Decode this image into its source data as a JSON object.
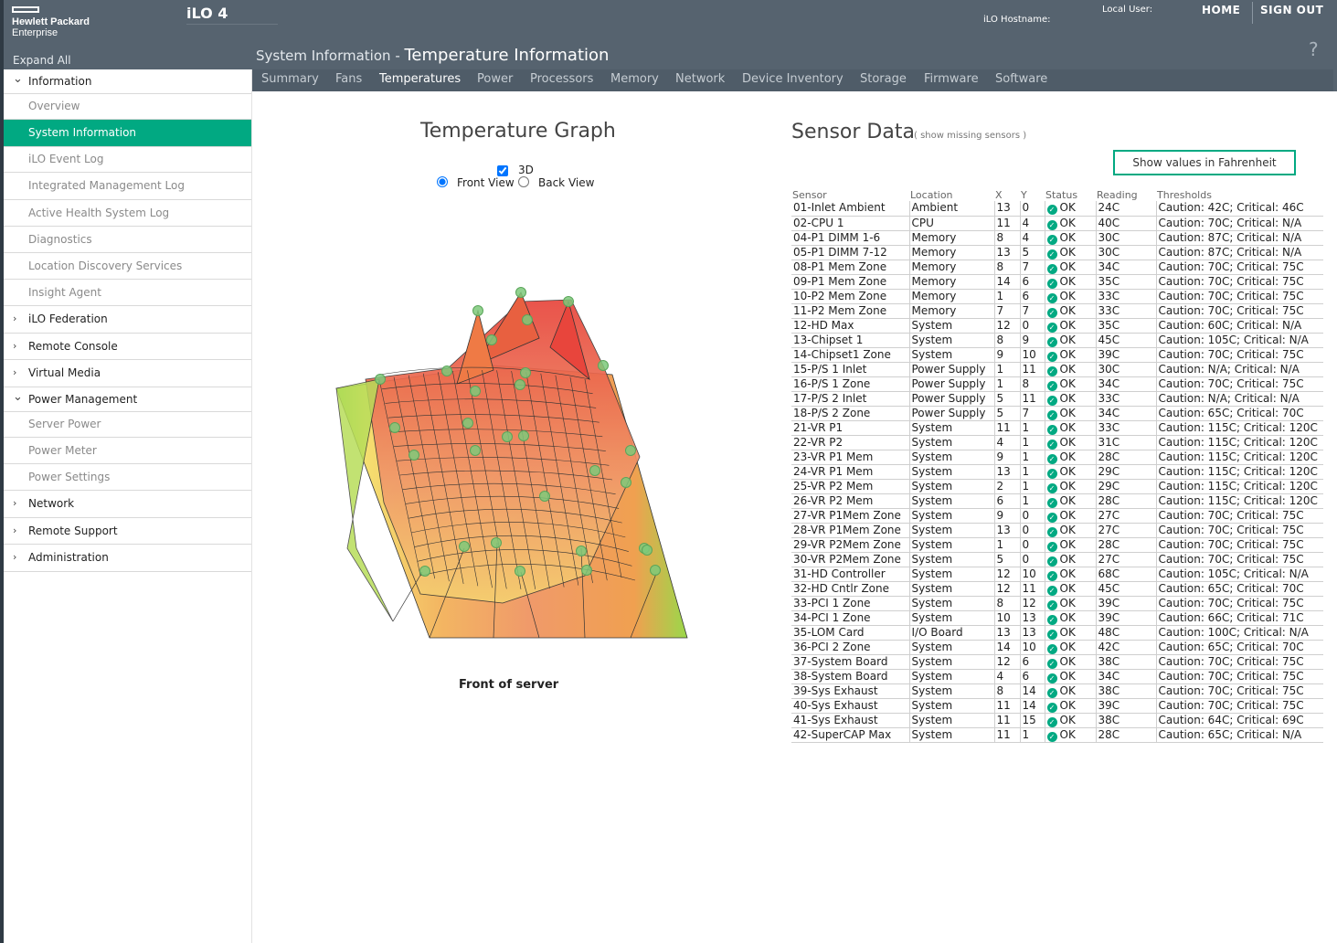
{
  "header": {
    "logo_line1": "Hewlett Packard",
    "logo_line2": "Enterprise",
    "product": "iLO 4",
    "hostname_label": "iLO Hostname:",
    "local_user_label": "Local User:",
    "home": "HOME",
    "sign_out": "SIGN OUT",
    "expand_all": "Expand All",
    "breadcrumb": "System Information",
    "separator": " - ",
    "page_title": "Temperature Information",
    "help": "?"
  },
  "tabs": [
    "Summary",
    "Fans",
    "Temperatures",
    "Power",
    "Processors",
    "Memory",
    "Network",
    "Device Inventory",
    "Storage",
    "Firmware",
    "Software"
  ],
  "active_tab": "Temperatures",
  "sidebar": [
    {
      "label": "Information",
      "type": "section",
      "expanded": true
    },
    {
      "label": "Overview",
      "type": "sub"
    },
    {
      "label": "System Information",
      "type": "sub",
      "active": true
    },
    {
      "label": "iLO Event Log",
      "type": "sub"
    },
    {
      "label": "Integrated Management Log",
      "type": "sub"
    },
    {
      "label": "Active Health System Log",
      "type": "sub"
    },
    {
      "label": "Diagnostics",
      "type": "sub"
    },
    {
      "label": "Location Discovery Services",
      "type": "sub"
    },
    {
      "label": "Insight Agent",
      "type": "sub"
    },
    {
      "label": "iLO Federation",
      "type": "section",
      "expanded": false
    },
    {
      "label": "Remote Console",
      "type": "section",
      "expanded": false
    },
    {
      "label": "Virtual Media",
      "type": "section",
      "expanded": false
    },
    {
      "label": "Power Management",
      "type": "section",
      "expanded": true
    },
    {
      "label": "Server Power",
      "type": "sub"
    },
    {
      "label": "Power Meter",
      "type": "sub"
    },
    {
      "label": "Power Settings",
      "type": "sub"
    },
    {
      "label": "Network",
      "type": "section",
      "expanded": false
    },
    {
      "label": "Remote Support",
      "type": "section",
      "expanded": false
    },
    {
      "label": "Administration",
      "type": "section",
      "expanded": false
    }
  ],
  "graph": {
    "title": "Temperature Graph",
    "checkbox_3d_label": "3D",
    "checkbox_3d_checked": true,
    "radio_front_label": "Front View",
    "radio_back_label": "Back View",
    "selected_view": "Front View",
    "caption": "Front of server"
  },
  "sensor_panel": {
    "title": "Sensor Data",
    "show_missing": "( show missing sensors )",
    "fahrenheit_button": "Show values in Fahrenheit",
    "columns": [
      "Sensor",
      "Location",
      "X",
      "Y",
      "Status",
      "Reading",
      "Thresholds"
    ],
    "rows": [
      [
        "01-Inlet Ambient",
        "Ambient",
        "13",
        "0",
        "OK",
        "24C",
        "Caution: 42C; Critical: 46C"
      ],
      [
        "02-CPU 1",
        "CPU",
        "11",
        "4",
        "OK",
        "40C",
        "Caution: 70C; Critical: N/A"
      ],
      [
        "04-P1 DIMM 1-6",
        "Memory",
        "8",
        "4",
        "OK",
        "30C",
        "Caution: 87C; Critical: N/A"
      ],
      [
        "05-P1 DIMM 7-12",
        "Memory",
        "13",
        "5",
        "OK",
        "30C",
        "Caution: 87C; Critical: N/A"
      ],
      [
        "08-P1 Mem Zone",
        "Memory",
        "8",
        "7",
        "OK",
        "34C",
        "Caution: 70C; Critical: 75C"
      ],
      [
        "09-P1 Mem Zone",
        "Memory",
        "14",
        "6",
        "OK",
        "35C",
        "Caution: 70C; Critical: 75C"
      ],
      [
        "10-P2 Mem Zone",
        "Memory",
        "1",
        "6",
        "OK",
        "33C",
        "Caution: 70C; Critical: 75C"
      ],
      [
        "11-P2 Mem Zone",
        "Memory",
        "7",
        "7",
        "OK",
        "33C",
        "Caution: 70C; Critical: 75C"
      ],
      [
        "12-HD Max",
        "System",
        "12",
        "0",
        "OK",
        "35C",
        "Caution: 60C; Critical: N/A"
      ],
      [
        "13-Chipset 1",
        "System",
        "8",
        "9",
        "OK",
        "45C",
        "Caution: 105C; Critical: N/A"
      ],
      [
        "14-Chipset1 Zone",
        "System",
        "9",
        "10",
        "OK",
        "39C",
        "Caution: 70C; Critical: 75C"
      ],
      [
        "15-P/S 1 Inlet",
        "Power Supply",
        "1",
        "11",
        "OK",
        "30C",
        "Caution: N/A; Critical: N/A"
      ],
      [
        "16-P/S 1 Zone",
        "Power Supply",
        "1",
        "8",
        "OK",
        "34C",
        "Caution: 70C; Critical: 75C"
      ],
      [
        "17-P/S 2 Inlet",
        "Power Supply",
        "5",
        "11",
        "OK",
        "33C",
        "Caution: N/A; Critical: N/A"
      ],
      [
        "18-P/S 2 Zone",
        "Power Supply",
        "5",
        "7",
        "OK",
        "34C",
        "Caution: 65C; Critical: 70C"
      ],
      [
        "21-VR P1",
        "System",
        "11",
        "1",
        "OK",
        "33C",
        "Caution: 115C; Critical: 120C"
      ],
      [
        "22-VR P2",
        "System",
        "4",
        "1",
        "OK",
        "31C",
        "Caution: 115C; Critical: 120C"
      ],
      [
        "23-VR P1 Mem",
        "System",
        "9",
        "1",
        "OK",
        "28C",
        "Caution: 115C; Critical: 120C"
      ],
      [
        "24-VR P1 Mem",
        "System",
        "13",
        "1",
        "OK",
        "29C",
        "Caution: 115C; Critical: 120C"
      ],
      [
        "25-VR P2 Mem",
        "System",
        "2",
        "1",
        "OK",
        "29C",
        "Caution: 115C; Critical: 120C"
      ],
      [
        "26-VR P2 Mem",
        "System",
        "6",
        "1",
        "OK",
        "28C",
        "Caution: 115C; Critical: 120C"
      ],
      [
        "27-VR P1Mem Zone",
        "System",
        "9",
        "0",
        "OK",
        "27C",
        "Caution: 70C; Critical: 75C"
      ],
      [
        "28-VR P1Mem Zone",
        "System",
        "13",
        "0",
        "OK",
        "27C",
        "Caution: 70C; Critical: 75C"
      ],
      [
        "29-VR P2Mem Zone",
        "System",
        "1",
        "0",
        "OK",
        "28C",
        "Caution: 70C; Critical: 75C"
      ],
      [
        "30-VR P2Mem Zone",
        "System",
        "5",
        "0",
        "OK",
        "27C",
        "Caution: 70C; Critical: 75C"
      ],
      [
        "31-HD Controller",
        "System",
        "12",
        "10",
        "OK",
        "68C",
        "Caution: 105C; Critical: N/A"
      ],
      [
        "32-HD Cntlr Zone",
        "System",
        "12",
        "11",
        "OK",
        "45C",
        "Caution: 65C; Critical: 70C"
      ],
      [
        "33-PCI 1 Zone",
        "System",
        "8",
        "12",
        "OK",
        "39C",
        "Caution: 70C; Critical: 75C"
      ],
      [
        "34-PCI 1 Zone",
        "System",
        "10",
        "13",
        "OK",
        "39C",
        "Caution: 66C; Critical: 71C"
      ],
      [
        "35-LOM Card",
        "I/O Board",
        "13",
        "13",
        "OK",
        "48C",
        "Caution: 100C; Critical: N/A"
      ],
      [
        "36-PCI 2 Zone",
        "System",
        "14",
        "10",
        "OK",
        "42C",
        "Caution: 65C; Critical: 70C"
      ],
      [
        "37-System Board",
        "System",
        "12",
        "6",
        "OK",
        "38C",
        "Caution: 70C; Critical: 75C"
      ],
      [
        "38-System Board",
        "System",
        "4",
        "6",
        "OK",
        "34C",
        "Caution: 70C; Critical: 75C"
      ],
      [
        "39-Sys Exhaust",
        "System",
        "8",
        "14",
        "OK",
        "38C",
        "Caution: 70C; Critical: 75C"
      ],
      [
        "40-Sys Exhaust",
        "System",
        "11",
        "14",
        "OK",
        "39C",
        "Caution: 70C; Critical: 75C"
      ],
      [
        "41-Sys Exhaust",
        "System",
        "11",
        "15",
        "OK",
        "38C",
        "Caution: 64C; Critical: 69C"
      ],
      [
        "42-SuperCAP Max",
        "System",
        "11",
        "1",
        "OK",
        "28C",
        "Caution: 65C; Critical: N/A"
      ]
    ]
  },
  "colors": {
    "header_bg": "#56636f",
    "tabbar_bg": "#4f5c68",
    "accent": "#01a982",
    "surface_hot": "#e8453c",
    "surface_warm": "#f0a050",
    "surface_cool": "#f5e070",
    "surface_cold": "#7dd84a"
  }
}
